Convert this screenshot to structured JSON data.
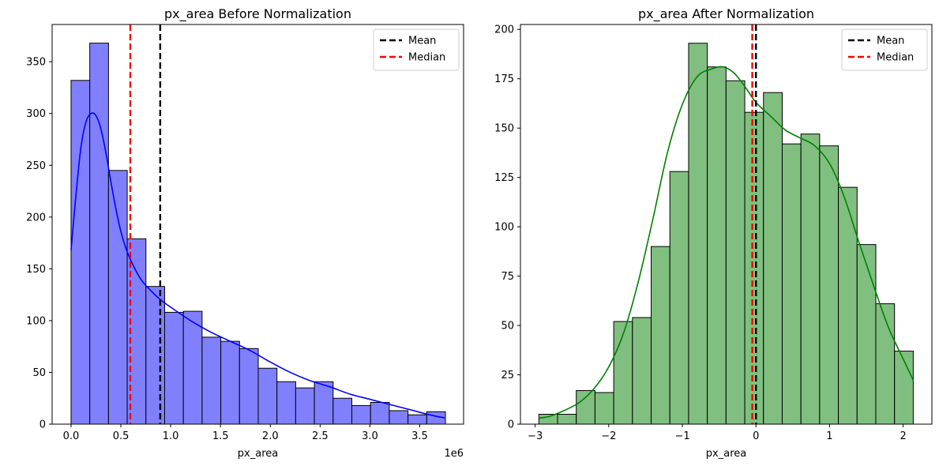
{
  "chart_data": [
    {
      "type": "histogram",
      "title": "px_area Before Normalization",
      "xlabel": "px_area",
      "ylabel": "",
      "x_offset_label": "1e6",
      "xlim": [
        -0.19,
        3.94
      ],
      "ylim": [
        0,
        386
      ],
      "xticks": [
        0,
        0.5,
        1,
        1.5,
        2,
        2.5,
        3,
        3.5
      ],
      "xtick_labels": [
        "0.0",
        "0.5",
        "1.0",
        "1.5",
        "2.0",
        "2.5",
        "3.0",
        "3.5"
      ],
      "yticks": [
        0,
        50,
        100,
        150,
        200,
        250,
        300,
        350
      ],
      "ytick_labels": [
        "0",
        "50",
        "100",
        "150",
        "200",
        "250",
        "300",
        "350"
      ],
      "bar_color": "#8080ff",
      "kde_color": "#0000ff",
      "bins": {
        "edges": [
          0.0,
          0.1879,
          0.3758,
          0.5637,
          0.7516,
          0.9395,
          1.1274,
          1.3153,
          1.5032,
          1.6911,
          1.879,
          2.0669,
          2.2548,
          2.4427,
          2.6306,
          2.8185,
          3.0064,
          3.1943,
          3.3822,
          3.5701,
          3.758
        ],
        "counts": [
          332,
          368,
          245,
          179,
          133,
          108,
          109,
          84,
          80,
          73,
          54,
          41,
          35,
          41,
          25,
          18,
          21,
          13,
          9,
          12
        ]
      },
      "kde": {
        "x": [
          0,
          0.05,
          0.1,
          0.15,
          0.2,
          0.25,
          0.3,
          0.35,
          0.4,
          0.45,
          0.5,
          0.55,
          0.6,
          0.7,
          0.8,
          0.9,
          1.0,
          1.2,
          1.4,
          1.6,
          1.8,
          2.0,
          2.2,
          2.4,
          2.6,
          2.8,
          3.0,
          3.2,
          3.4,
          3.6,
          3.75
        ],
        "y": [
          168,
          222,
          268,
          292,
          300,
          298,
          285,
          262,
          234,
          208,
          186,
          170,
          158,
          140,
          129,
          120,
          113,
          100,
          89,
          80,
          71,
          60,
          50,
          42,
          36,
          29,
          24,
          19,
          14,
          9,
          6
        ]
      },
      "lines": [
        {
          "name": "Mean",
          "x": 0.895,
          "color": "#000000"
        },
        {
          "name": "Median",
          "x": 0.595,
          "color": "#ff0000"
        }
      ],
      "legend": {
        "position": "top-right",
        "entries": [
          "Mean",
          "Median"
        ]
      }
    },
    {
      "type": "histogram",
      "title": "px_area After Normalization",
      "xlabel": "px_area",
      "ylabel": "",
      "xlim": [
        -3.2,
        2.39
      ],
      "ylim": [
        0,
        202.5
      ],
      "xticks": [
        -3,
        -2,
        -1,
        0,
        1,
        2
      ],
      "xtick_labels": [
        "−3",
        "−2",
        "−1",
        "0",
        "1",
        "2"
      ],
      "yticks": [
        0,
        25,
        50,
        75,
        100,
        125,
        150,
        175,
        200
      ],
      "ytick_labels": [
        "0",
        "25",
        "50",
        "75",
        "100",
        "125",
        "150",
        "175",
        "200"
      ],
      "bar_color": "#80bf80",
      "kde_color": "#008000",
      "bins": {
        "edges": [
          -2.95,
          -2.6957,
          -2.4413,
          -2.187,
          -1.9327,
          -1.6783,
          -1.424,
          -1.1696,
          -0.9153,
          -0.661,
          -0.4066,
          -0.1523,
          0.102,
          0.3564,
          0.6107,
          0.865,
          1.1194,
          1.3737,
          1.6281,
          1.8824,
          2.1367
        ],
        "counts": [
          5,
          5,
          17,
          16,
          52,
          54,
          90,
          128,
          193,
          181,
          174,
          158,
          168,
          142,
          147,
          141,
          120,
          91,
          61,
          37
        ]
      },
      "kde": {
        "x": [
          -2.95,
          -2.8,
          -2.6,
          -2.4,
          -2.2,
          -2.0,
          -1.8,
          -1.6,
          -1.4,
          -1.2,
          -1.0,
          -0.8,
          -0.6,
          -0.45,
          -0.3,
          -0.15,
          0.0,
          0.2,
          0.4,
          0.6,
          0.8,
          1.0,
          1.2,
          1.4,
          1.6,
          1.8,
          2.0,
          2.14
        ],
        "y": [
          3,
          4,
          7,
          11,
          18,
          29,
          46,
          72,
          104,
          138,
          162,
          176,
          180,
          181,
          178,
          171,
          163,
          156,
          149,
          145,
          141,
          132,
          115,
          92,
          70,
          49,
          33,
          22
        ]
      },
      "lines": [
        {
          "name": "Mean",
          "x": 0.0,
          "color": "#000000"
        },
        {
          "name": "Median",
          "x": -0.05,
          "color": "#ff0000"
        }
      ],
      "legend": {
        "position": "top-right",
        "entries": [
          "Mean",
          "Median"
        ]
      }
    }
  ]
}
